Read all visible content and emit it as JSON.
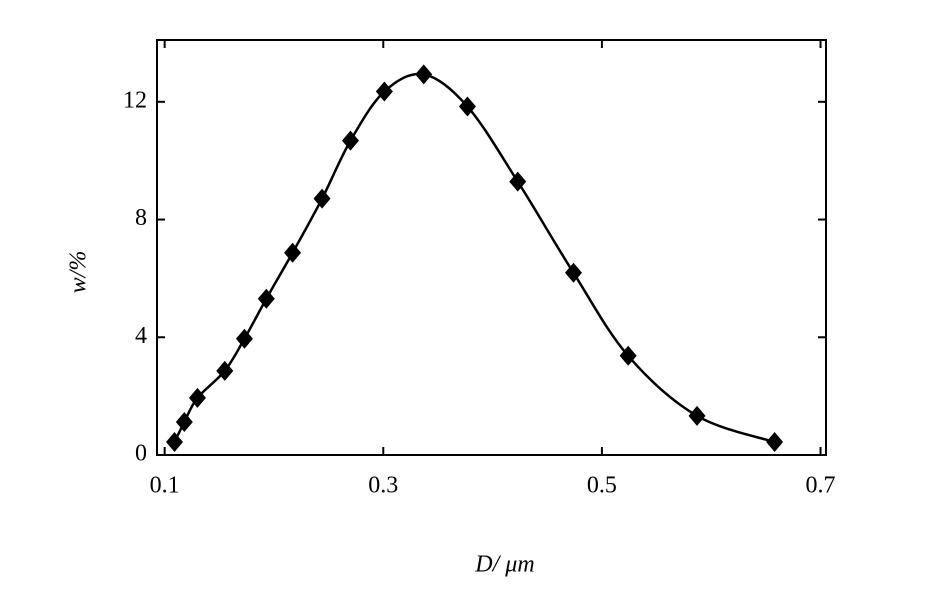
{
  "chart_data": {
    "type": "line",
    "x_label": "D/ μm",
    "y_label": "w/%",
    "x": [
      0.109,
      0.118,
      0.13,
      0.155,
      0.173,
      0.193,
      0.217,
      0.244,
      0.27,
      0.301,
      0.337,
      0.377,
      0.423,
      0.474,
      0.524,
      0.587,
      0.658
    ],
    "series": [
      {
        "color": "#000000",
        "values": [
          0.44,
          1.12,
          1.94,
          2.86,
          3.95,
          5.31,
          6.87,
          8.71,
          10.68,
          12.35,
          12.93,
          11.84,
          9.29,
          6.19,
          3.37,
          1.33,
          0.44
        ]
      }
    ],
    "xlim": [
      0.093,
      0.705
    ],
    "xticks": [
      0.1,
      0.3,
      0.5,
      0.7
    ],
    "ylim": [
      0,
      14.1
    ],
    "yticks": [
      0,
      4,
      8,
      12
    ],
    "marker": "diamond"
  }
}
